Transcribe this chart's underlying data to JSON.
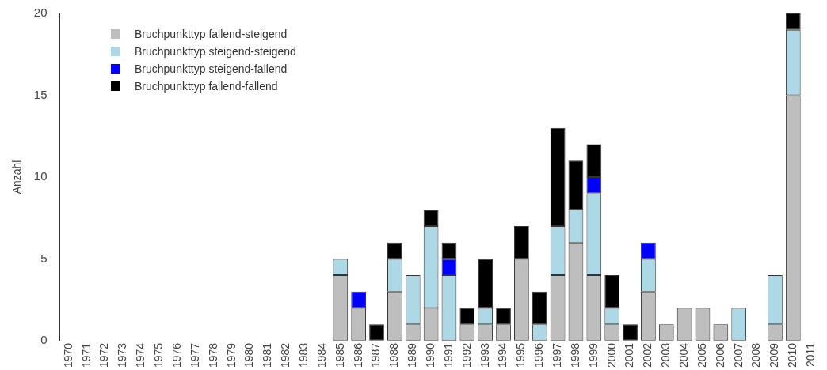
{
  "chart_data": {
    "type": "bar",
    "ylabel": "Anzahl",
    "stacked": true,
    "legend": "top left",
    "grid": false,
    "categories": [
      "1970",
      "1971",
      "1972",
      "1973",
      "1974",
      "1975",
      "1976",
      "1977",
      "1978",
      "1979",
      "1980",
      "1981",
      "1982",
      "1983",
      "1984",
      "1985",
      "1986",
      "1987",
      "1988",
      "1989",
      "1990",
      "1991",
      "1992",
      "1993",
      "1994",
      "1995",
      "1996",
      "1997",
      "1998",
      "1999",
      "2000",
      "2001",
      "2002",
      "2003",
      "2004",
      "2005",
      "2006",
      "2007",
      "2008",
      "2009",
      "2010",
      "2011"
    ],
    "series": [
      {
        "name": "Bruchpunkttyp fallend-steigend",
        "color": "#bebebe",
        "values": [
          0,
          0,
          0,
          0,
          0,
          0,
          0,
          0,
          0,
          0,
          0,
          0,
          0,
          0,
          0,
          4,
          2,
          0,
          3,
          1,
          2,
          0,
          1,
          1,
          1,
          5,
          0,
          4,
          6,
          4,
          1,
          0,
          3,
          1,
          2,
          2,
          1,
          0,
          0,
          1,
          15,
          0
        ]
      },
      {
        "name": "Bruchpunkttyp steigend-steigend",
        "color": "#add8e6",
        "values": [
          0,
          0,
          0,
          0,
          0,
          0,
          0,
          0,
          0,
          0,
          0,
          0,
          0,
          0,
          0,
          1,
          0,
          0,
          2,
          3,
          5,
          4,
          0,
          1,
          0,
          0,
          1,
          3,
          2,
          5,
          1,
          0,
          2,
          0,
          0,
          0,
          0,
          2,
          0,
          3,
          4,
          0
        ]
      },
      {
        "name": "Bruchpunkttyp steigend-fallend",
        "color": "#0000ff",
        "values": [
          0,
          0,
          0,
          0,
          0,
          0,
          0,
          0,
          0,
          0,
          0,
          0,
          0,
          0,
          0,
          0,
          1,
          0,
          0,
          0,
          0,
          1,
          0,
          0,
          0,
          0,
          0,
          0,
          0,
          1,
          0,
          0,
          1,
          0,
          0,
          0,
          0,
          0,
          0,
          0,
          0,
          0
        ]
      },
      {
        "name": "Bruchpunkttyp fallend-fallend",
        "color": "#000000",
        "values": [
          0,
          0,
          0,
          0,
          0,
          0,
          0,
          0,
          0,
          0,
          0,
          0,
          0,
          0,
          0,
          0,
          0,
          1,
          1,
          0,
          1,
          1,
          1,
          3,
          1,
          2,
          2,
          6,
          3,
          2,
          2,
          1,
          0,
          0,
          0,
          0,
          0,
          0,
          0,
          0,
          1,
          0
        ]
      }
    ],
    "ylim": [
      0,
      20
    ],
    "yticks": [
      0,
      5,
      10,
      15,
      20
    ]
  }
}
